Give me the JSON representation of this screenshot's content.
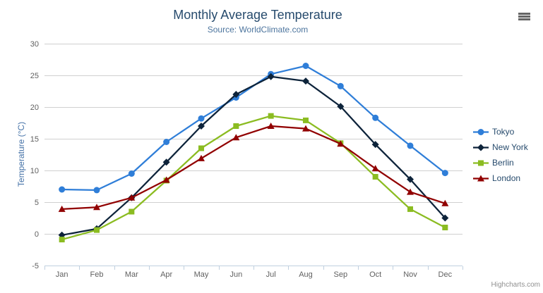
{
  "credits_label": "Highcharts.com",
  "export_menu": {
    "icon": "hamburger-menu-icon"
  },
  "chart_data": {
    "type": "line",
    "title": "Monthly Average Temperature",
    "subtitle": "Source: WorldClimate.com",
    "categories": [
      "Jan",
      "Feb",
      "Mar",
      "Apr",
      "May",
      "Jun",
      "Jul",
      "Aug",
      "Sep",
      "Oct",
      "Nov",
      "Dec"
    ],
    "xlabel": "",
    "ylabel": "Temperature (°C)",
    "ylim": [
      -5,
      30
    ],
    "ytick_interval": 5,
    "grid": true,
    "legend_position": "right",
    "style": {
      "grid_color": "#d0d0d0",
      "axis_line_color": "#c0d0e0",
      "tick_color": "#c0d0e0",
      "axis_label_color": "#606060",
      "title_color": "#274b6d",
      "subtitle_color": "#4d759e",
      "y_title_color": "#4572a7",
      "legend_text_color": "#274b6d",
      "menu_icon_color": "#666666",
      "credits_color": "#909090"
    },
    "series": [
      {
        "name": "Tokyo",
        "color": "#2f7ed8",
        "marker": "circle",
        "values": [
          7.0,
          6.9,
          9.5,
          14.5,
          18.2,
          21.5,
          25.2,
          26.5,
          23.3,
          18.3,
          13.9,
          9.6
        ]
      },
      {
        "name": "New York",
        "color": "#0d233a",
        "marker": "diamond",
        "values": [
          -0.2,
          0.8,
          5.7,
          11.3,
          17.0,
          22.0,
          24.8,
          24.1,
          20.1,
          14.1,
          8.6,
          2.5
        ]
      },
      {
        "name": "Berlin",
        "color": "#8bbc21",
        "marker": "square",
        "values": [
          -0.9,
          0.6,
          3.5,
          8.4,
          13.5,
          17.0,
          18.6,
          17.9,
          14.3,
          9.0,
          3.9,
          1.0
        ]
      },
      {
        "name": "London",
        "color": "#910000",
        "marker": "triangle",
        "values": [
          3.9,
          4.2,
          5.7,
          8.5,
          11.9,
          15.2,
          17.0,
          16.6,
          14.2,
          10.3,
          6.6,
          4.8
        ]
      }
    ]
  }
}
